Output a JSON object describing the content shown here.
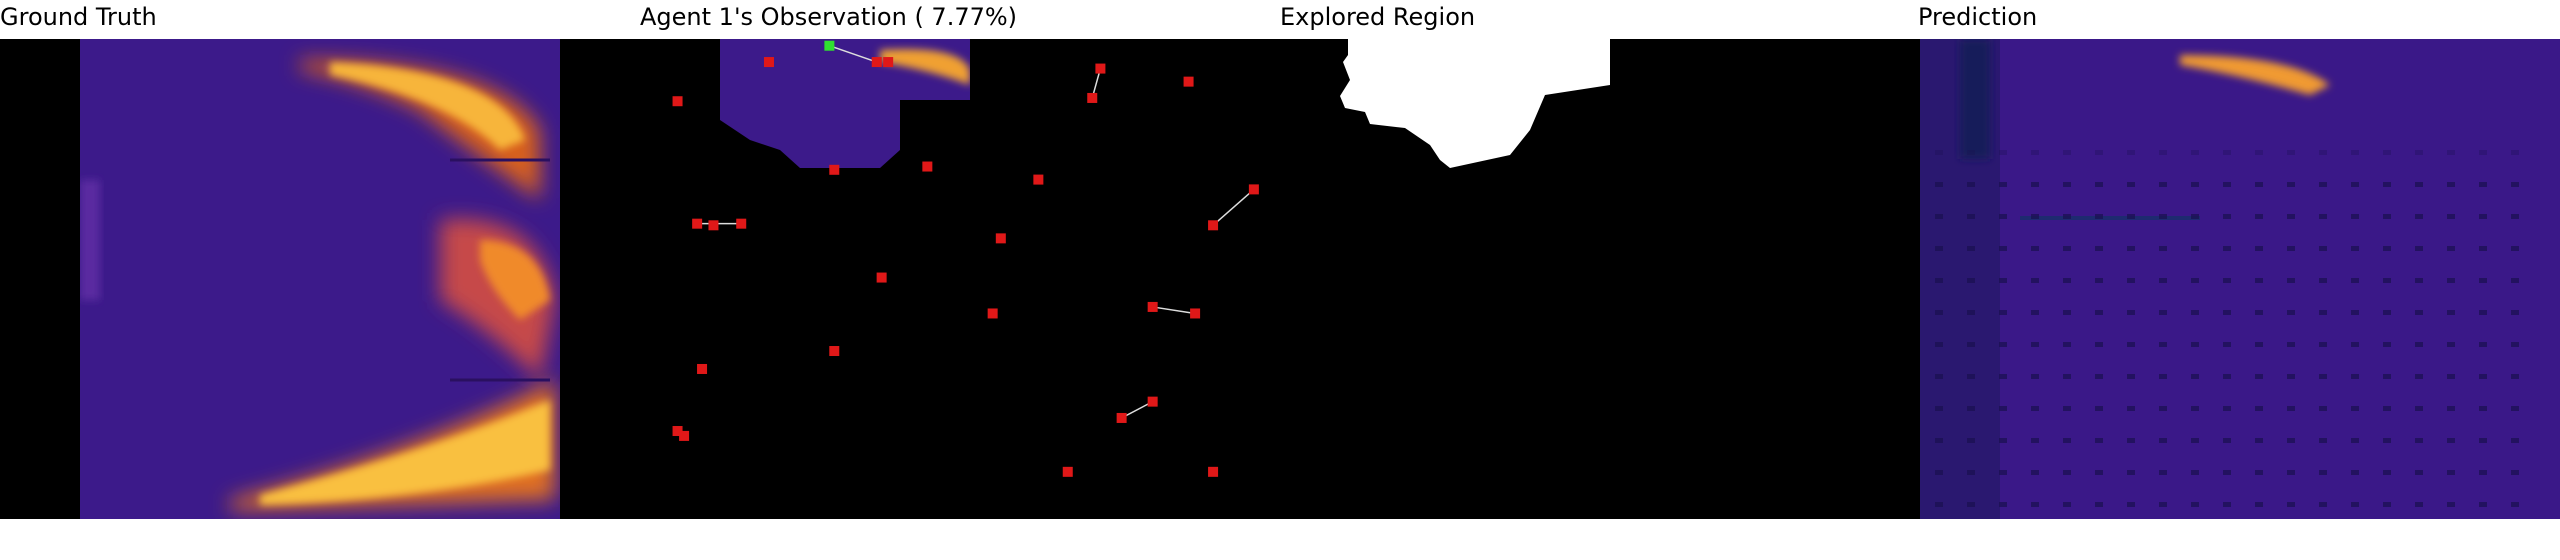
{
  "panels": [
    {
      "title": "Ground Truth"
    },
    {
      "title": "Agent 1's Observation ( 7.77%)"
    },
    {
      "title": "Explored Region"
    },
    {
      "title": "Prediction"
    }
  ]
}
